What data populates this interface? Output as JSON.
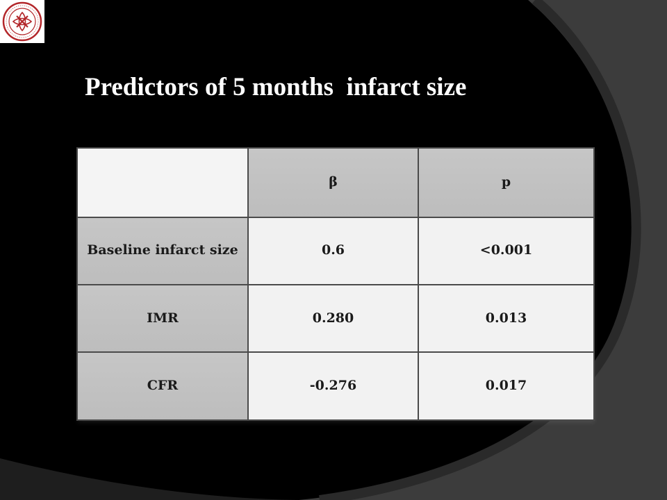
{
  "slide": {
    "title": "Predictors of 5 months  infarct size",
    "logo_icon": "university-seal-icon",
    "colors": {
      "background": "#000000",
      "swoosh": "#3c3c3c",
      "header_cell": "#c0c0c0",
      "data_cell": "#f2f2f2",
      "border": "#4a4a4a"
    }
  },
  "table": {
    "columns": [
      "",
      "β",
      "p"
    ],
    "rows": [
      {
        "label": "Baseline infarct size",
        "beta": "0.6",
        "p": "<0.001"
      },
      {
        "label": "IMR",
        "beta": "0.280",
        "p": "0.013"
      },
      {
        "label": "CFR",
        "beta": "-0.276",
        "p": "0.017"
      }
    ]
  }
}
